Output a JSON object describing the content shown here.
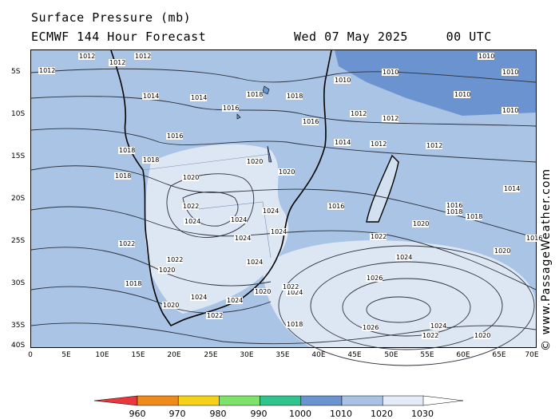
{
  "header": {
    "title": "Surface Pressure (mb)",
    "model": "ECMWF 144 Hour Forecast",
    "valid_time": "Wed 07 May 2025     00 UTC"
  },
  "credit": "© www.PassageWeather.com",
  "axes": {
    "lat_labels": [
      "5S",
      "10S",
      "15S",
      "20S",
      "25S",
      "30S",
      "35S",
      "40S"
    ],
    "lon_labels": [
      "0",
      "5E",
      "10E",
      "15E",
      "20E",
      "25E",
      "30E",
      "35E",
      "40E",
      "45E",
      "50E",
      "55E",
      "60E",
      "65E",
      "70E"
    ]
  },
  "legend": {
    "values": [
      "960",
      "970",
      "980",
      "990",
      "1000",
      "1010",
      "1020",
      "1030"
    ],
    "colors": [
      "#e8383d",
      "#f08a1a",
      "#f6d11a",
      "#7fe36b",
      "#2fc38d",
      "#6a93cf",
      "#a7c2e4",
      "#e2ebf6"
    ]
  },
  "isobar_labels": [
    {
      "t": "1012"
    },
    {
      "t": "1012"
    },
    {
      "t": "1010"
    },
    {
      "t": "1010"
    },
    {
      "t": "1010"
    },
    {
      "t": "1010"
    },
    {
      "t": "1012"
    },
    {
      "t": "1012"
    },
    {
      "t": "1014"
    },
    {
      "t": "1014"
    },
    {
      "t": "1016"
    },
    {
      "t": "1018"
    },
    {
      "t": "1018"
    },
    {
      "t": "1016"
    },
    {
      "t": "1012"
    },
    {
      "t": "1012"
    },
    {
      "t": "1016"
    },
    {
      "t": "1018"
    },
    {
      "t": "1018"
    },
    {
      "t": "1018"
    },
    {
      "t": "1020"
    },
    {
      "t": "1020"
    },
    {
      "t": "1020"
    },
    {
      "t": "1022"
    },
    {
      "t": "1024"
    },
    {
      "t": "1024"
    },
    {
      "t": "1024"
    },
    {
      "t": "1022"
    },
    {
      "t": "1022"
    },
    {
      "t": "1020"
    },
    {
      "t": "1018"
    },
    {
      "t": "1016"
    },
    {
      "t": "1014"
    },
    {
      "t": "1012"
    },
    {
      "t": "1016"
    },
    {
      "t": "1020"
    },
    {
      "t": "1022"
    },
    {
      "t": "1024"
    },
    {
      "t": "1026"
    },
    {
      "t": "1026"
    },
    {
      "t": "1024"
    },
    {
      "t": "1022"
    },
    {
      "t": "1020"
    },
    {
      "t": "1018"
    },
    {
      "t": "1016"
    },
    {
      "t": "1020"
    },
    {
      "t": "1024"
    },
    {
      "t": "1022"
    },
    {
      "t": "1018"
    },
    {
      "t": "1024"
    },
    {
      "t": "1024"
    },
    {
      "t": "1024"
    },
    {
      "t": "1022"
    },
    {
      "t": "1020"
    },
    {
      "t": "1018"
    },
    {
      "t": "1024"
    },
    {
      "t": "1024"
    },
    {
      "t": "1020"
    },
    {
      "t": "1014"
    },
    {
      "t": "1012"
    },
    {
      "t": "1010"
    },
    {
      "t": "1010"
    }
  ]
}
